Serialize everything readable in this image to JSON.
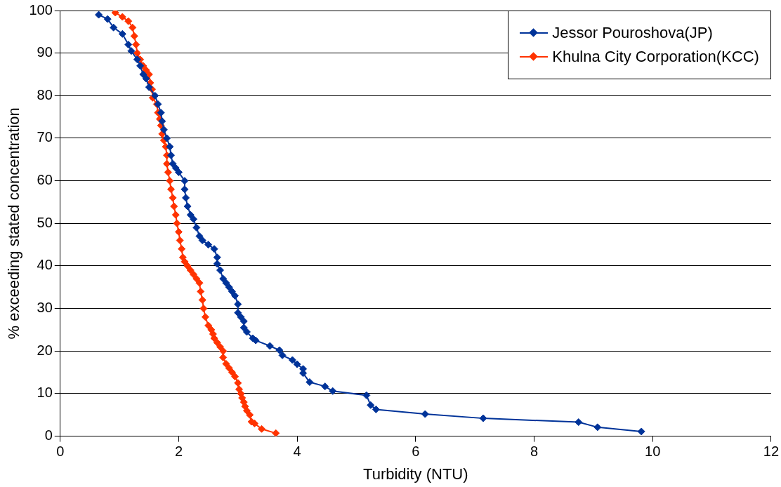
{
  "chart_data": {
    "type": "line",
    "xlabel": "Turbidity (NTU)",
    "ylabel": "% exceeding stated concentration",
    "xlim": [
      0,
      12
    ],
    "xticks": [
      0,
      2,
      4,
      6,
      8,
      10,
      12
    ],
    "ylim": [
      0,
      100
    ],
    "yticks": [
      0,
      10,
      20,
      30,
      40,
      50,
      60,
      70,
      80,
      90,
      100
    ],
    "grid": "y",
    "legend": "top right",
    "marker": "diamond",
    "line_style": "solid",
    "series": [
      {
        "name": "Jessor Pouroshova(JP)",
        "color": "#003399",
        "x": [
          0.65,
          0.8,
          0.9,
          1.05,
          1.15,
          1.2,
          1.3,
          1.35,
          1.4,
          1.45,
          1.5,
          1.6,
          1.65,
          1.7,
          1.72,
          1.75,
          1.8,
          1.85,
          1.87,
          1.9,
          1.95,
          2.0,
          2.1,
          2.1,
          2.12,
          2.15,
          2.2,
          2.25,
          2.3,
          2.35,
          2.4,
          2.5,
          2.6,
          2.65,
          2.65,
          2.7,
          2.75,
          2.8,
          2.85,
          2.9,
          2.95,
          3.0,
          3.0,
          3.05,
          3.1,
          3.1,
          3.15,
          3.25,
          3.3,
          3.54,
          3.7,
          3.75,
          3.92,
          4.0,
          4.1,
          4.1,
          4.21,
          4.47,
          4.6,
          5.17,
          5.24,
          5.33,
          6.16,
          7.14,
          8.75,
          9.07,
          9.81
        ],
        "values": [
          99,
          98,
          96,
          94.5,
          92,
          90.5,
          88.5,
          87,
          85,
          84,
          82,
          80,
          78,
          76,
          74,
          72,
          70,
          68,
          66,
          64,
          63,
          62,
          60,
          58,
          56,
          54,
          52,
          51,
          49,
          47,
          46,
          45,
          44,
          42,
          40.5,
          39,
          37,
          36,
          35,
          34,
          33,
          31,
          29,
          28,
          27,
          25.5,
          24.5,
          23,
          22.5,
          21.2,
          20.2,
          19,
          17.9,
          16.9,
          15.8,
          14.8,
          12.7,
          11.7,
          10.6,
          9.6,
          7.3,
          6.3,
          5.2,
          4.2,
          3.3,
          2.1,
          1.1
        ]
      },
      {
        "name": "Khulna City Corporation(KCC)",
        "color": "#ff3300",
        "x": [
          0.93,
          1.05,
          1.15,
          1.22,
          1.25,
          1.28,
          1.3,
          1.35,
          1.4,
          1.45,
          1.5,
          1.52,
          1.55,
          1.56,
          1.63,
          1.65,
          1.68,
          1.7,
          1.72,
          1.75,
          1.78,
          1.8,
          1.8,
          1.82,
          1.85,
          1.87,
          1.9,
          1.92,
          1.95,
          1.97,
          2.0,
          2.02,
          2.05,
          2.07,
          2.1,
          2.15,
          2.2,
          2.25,
          2.3,
          2.35,
          2.37,
          2.4,
          2.42,
          2.45,
          2.5,
          2.55,
          2.58,
          2.6,
          2.65,
          2.7,
          2.75,
          2.75,
          2.8,
          2.85,
          2.9,
          2.95,
          3.0,
          3.02,
          3.05,
          3.07,
          3.1,
          3.12,
          3.15,
          3.2,
          3.23,
          3.28,
          3.4,
          3.64
        ],
        "values": [
          99.5,
          98.5,
          97.5,
          96,
          94,
          92,
          90,
          88.5,
          87,
          86,
          85,
          83,
          81.5,
          79.5,
          78,
          76,
          74.5,
          73,
          71,
          69.5,
          68,
          66,
          64,
          62,
          60,
          58,
          56,
          54,
          52,
          50,
          48,
          46,
          44,
          42,
          41,
          40,
          39,
          38,
          37,
          36,
          34,
          32,
          30,
          28,
          26,
          25,
          24,
          23,
          22,
          21,
          20,
          18.5,
          17,
          16,
          15,
          14,
          12.5,
          11,
          10,
          9,
          8,
          7,
          6,
          5,
          3.4,
          3,
          1.7,
          0.7
        ]
      }
    ]
  }
}
